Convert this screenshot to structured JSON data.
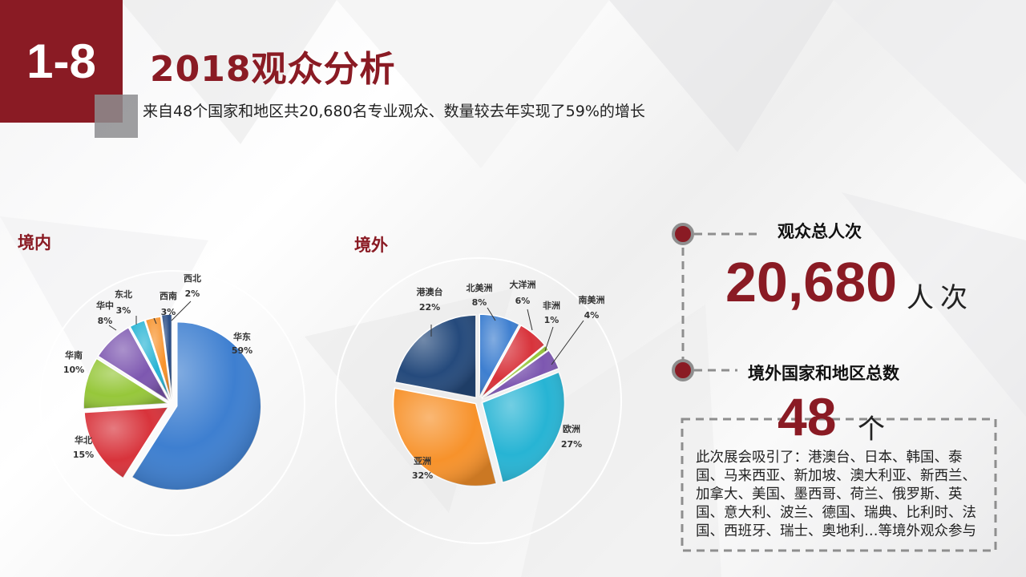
{
  "header": {
    "section_number": "1-8",
    "title": "2018观众分析",
    "subtitle": "来自48个国家和地区共20,680名专业观众、数量较去年实现了59%的增长"
  },
  "colors": {
    "accent": "#8a1b24"
  },
  "chart_data": [
    {
      "type": "pie",
      "title": "境内",
      "labels": [
        "华东",
        "华北",
        "华南",
        "华中",
        "东北",
        "西南",
        "西北"
      ],
      "values": [
        59,
        15,
        10,
        8,
        3,
        3,
        2
      ],
      "value_labels": [
        "59%",
        "15%",
        "10%",
        "8%",
        "3%",
        "3%",
        "2%"
      ],
      "colors": [
        "#3e7fd0",
        "#d8333b",
        "#96c73a",
        "#7d57b0",
        "#27b4d4",
        "#f7922b",
        "#2a4d85"
      ]
    },
    {
      "type": "pie",
      "title": "境外",
      "labels": [
        "北美洲",
        "大洋洲",
        "非洲",
        "南美洲",
        "欧洲",
        "亚洲",
        "港澳台"
      ],
      "values": [
        8,
        6,
        1,
        4,
        27,
        32,
        22
      ],
      "value_labels": [
        "8%",
        "6%",
        "1%",
        "4%",
        "27%",
        "32%",
        "22%"
      ],
      "colors": [
        "#3e7fd0",
        "#d8333b",
        "#96c73a",
        "#7d57b0",
        "#27b4d4",
        "#f7922b",
        "#254a7c"
      ]
    }
  ],
  "stats": {
    "total_visitors": {
      "heading": "观众总人次",
      "value": "20,680",
      "unit": "人次"
    },
    "countries": {
      "heading": "境外国家和地区总数",
      "value": "48",
      "unit": "个"
    },
    "description": "此次展会吸引了：港澳台、日本、韩国、泰国、马来西亚、新加坡、澳大利亚、新西兰、加拿大、美国、墨西哥、荷兰、俄罗斯、英国、意大利、波兰、德国、瑞典、比利时、法国、西班牙、瑞士、奥地利…等境外观众参与"
  }
}
